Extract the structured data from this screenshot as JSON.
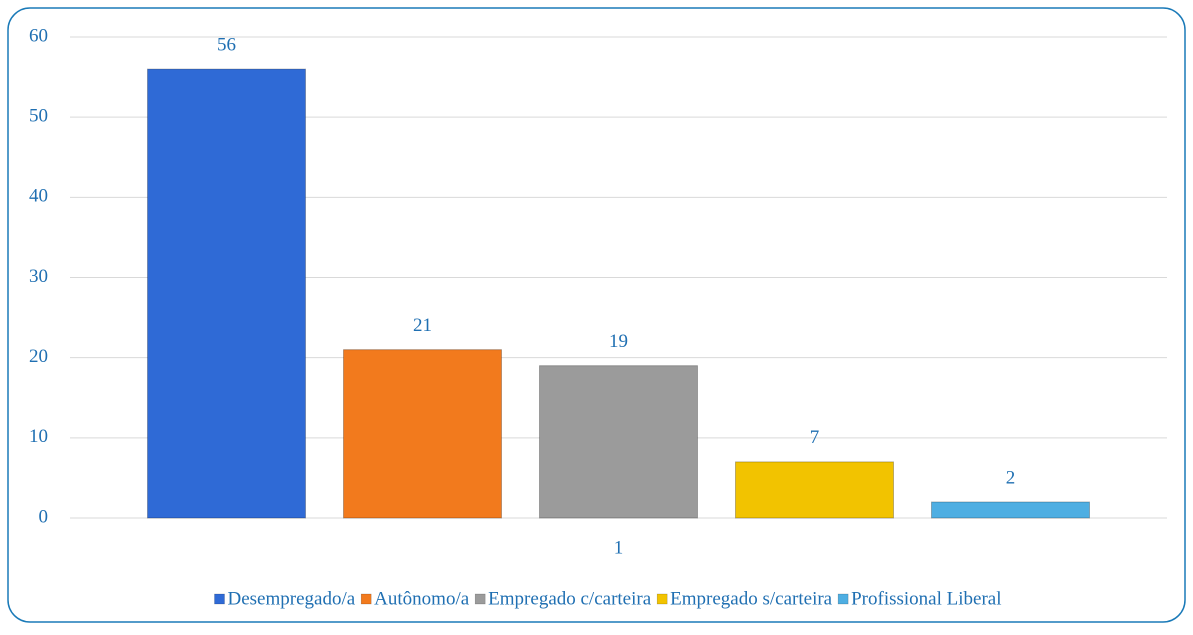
{
  "chart_data": {
    "type": "bar",
    "categories": [
      "1"
    ],
    "series": [
      {
        "name": "Desempregado/a",
        "color": "#2f6ad6",
        "values": [
          56
        ]
      },
      {
        "name": "Autônomo/a",
        "color": "#f27a1d",
        "values": [
          21
        ]
      },
      {
        "name": "Empregado c/carteira",
        "color": "#9b9b9b",
        "values": [
          19
        ]
      },
      {
        "name": "Empregado s/carteira",
        "color": "#f2c300",
        "values": [
          7
        ]
      },
      {
        "name": "Profissional Liberal",
        "color": "#4eaee2",
        "values": [
          2
        ]
      }
    ],
    "ylim": [
      0,
      60
    ],
    "yticks": [
      0,
      10,
      20,
      30,
      40,
      50,
      60
    ],
    "grid": true,
    "legend": "bottom"
  }
}
